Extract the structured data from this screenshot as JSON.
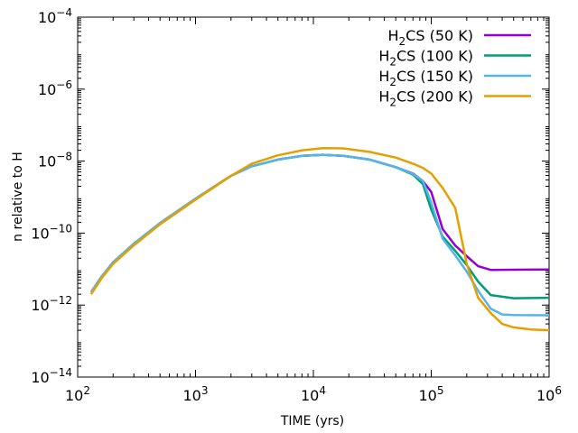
{
  "chart_data": {
    "type": "line",
    "title": "",
    "xlabel": "TIME (yrs)",
    "ylabel": "n relative to H",
    "xscale": "log",
    "yscale": "log",
    "xlim": [
      100,
      1000000
    ],
    "ylim": [
      1e-14,
      0.0001
    ],
    "grid": false,
    "legend_position": "top-right",
    "x_ticks": [
      {
        "value": 100,
        "base": "10",
        "exp": "2"
      },
      {
        "value": 1000,
        "base": "10",
        "exp": "3"
      },
      {
        "value": 10000,
        "base": "10",
        "exp": "4"
      },
      {
        "value": 100000,
        "base": "10",
        "exp": "5"
      },
      {
        "value": 1000000,
        "base": "10",
        "exp": "6"
      }
    ],
    "y_ticks": [
      {
        "value": 1e-14,
        "base": "10",
        "exp": "−14"
      },
      {
        "value": 1e-12,
        "base": "10",
        "exp": "−12"
      },
      {
        "value": 1e-10,
        "base": "10",
        "exp": "−10"
      },
      {
        "value": 1e-08,
        "base": "10",
        "exp": "−8"
      },
      {
        "value": 1e-06,
        "base": "10",
        "exp": "−6"
      },
      {
        "value": 0.0001,
        "base": "10",
        "exp": "−4"
      }
    ],
    "series": [
      {
        "name": "H2CS (50 K)",
        "label_parts": [
          "H",
          "2",
          "CS (50 K)"
        ],
        "color": "#9400d3",
        "x": [
          130,
          160,
          200,
          300,
          500,
          1000,
          2000,
          3000,
          5000,
          8000,
          12000,
          18000,
          30000,
          50000,
          70000,
          85000,
          100000,
          125000,
          160000,
          200000,
          250000,
          320000,
          500000,
          1000000
        ],
        "y": [
          2.3e-12,
          6.2e-12,
          1.55e-11,
          5.1e-11,
          1.9e-10,
          9e-10,
          3.9e-09,
          7.2e-09,
          1.1e-08,
          1.4e-08,
          1.5e-08,
          1.4e-08,
          1.1e-08,
          6.8e-09,
          4.5e-09,
          2.8e-09,
          1.4e-09,
          1.3e-10,
          4.5e-11,
          2.3e-11,
          1.2e-11,
          9.5e-12,
          9.6e-12,
          9.7e-12
        ]
      },
      {
        "name": "H2CS (100 K)",
        "label_parts": [
          "H",
          "2",
          "CS (100 K)"
        ],
        "color": "#009e73",
        "x": [
          130,
          160,
          200,
          300,
          500,
          1000,
          2000,
          3000,
          5000,
          8000,
          12000,
          18000,
          30000,
          50000,
          70000,
          85000,
          100000,
          125000,
          160000,
          200000,
          250000,
          320000,
          500000,
          1000000
        ],
        "y": [
          2.3e-12,
          6.2e-12,
          1.55e-11,
          5.1e-11,
          1.9e-10,
          9e-10,
          3.9e-09,
          7.2e-09,
          1.1e-08,
          1.4e-08,
          1.5e-08,
          1.4e-08,
          1.1e-08,
          6.8e-09,
          4.2e-09,
          2.3e-09,
          4.5e-10,
          8e-11,
          3.2e-11,
          1.3e-11,
          4.5e-12,
          1.9e-12,
          1.55e-12,
          1.6e-12
        ]
      },
      {
        "name": "H2CS (150 K)",
        "label_parts": [
          "H",
          "2",
          "CS (150 K)"
        ],
        "color": "#56b4e9",
        "x": [
          130,
          160,
          200,
          300,
          500,
          1000,
          2000,
          3000,
          5000,
          8000,
          12000,
          18000,
          30000,
          50000,
          70000,
          85000,
          100000,
          125000,
          160000,
          200000,
          250000,
          320000,
          400000,
          500000,
          1000000
        ],
        "y": [
          2.3e-12,
          6.2e-12,
          1.55e-11,
          5.1e-11,
          1.9e-10,
          9e-10,
          3.9e-09,
          7.2e-09,
          1.1e-08,
          1.4e-08,
          1.5e-08,
          1.4e-08,
          1.1e-08,
          6.8e-09,
          4.4e-09,
          2.8e-09,
          7e-10,
          7e-11,
          2.4e-11,
          8.5e-12,
          2.5e-12,
          8e-13,
          5.5e-13,
          5.3e-13,
          5.2e-13
        ]
      },
      {
        "name": "H2CS (200 K)",
        "label_parts": [
          "H",
          "2",
          "CS (200 K)"
        ],
        "color": "#e69f00",
        "x": [
          130,
          160,
          200,
          300,
          500,
          1000,
          2000,
          3000,
          5000,
          8000,
          12000,
          18000,
          30000,
          50000,
          70000,
          85000,
          100000,
          125000,
          160000,
          200000,
          250000,
          320000,
          400000,
          500000,
          700000,
          1000000
        ],
        "y": [
          2e-12,
          5.6e-12,
          1.4e-11,
          4.6e-11,
          1.75e-10,
          8.5e-10,
          3.9e-09,
          8.5e-09,
          1.45e-08,
          2e-08,
          2.3e-08,
          2.25e-08,
          1.8e-08,
          1.25e-08,
          8.5e-09,
          6.5e-09,
          4.5e-09,
          1.8e-09,
          5e-10,
          1.4e-11,
          1.6e-12,
          6e-13,
          3e-13,
          2.4e-13,
          2.1e-13,
          2e-13
        ]
      }
    ]
  }
}
